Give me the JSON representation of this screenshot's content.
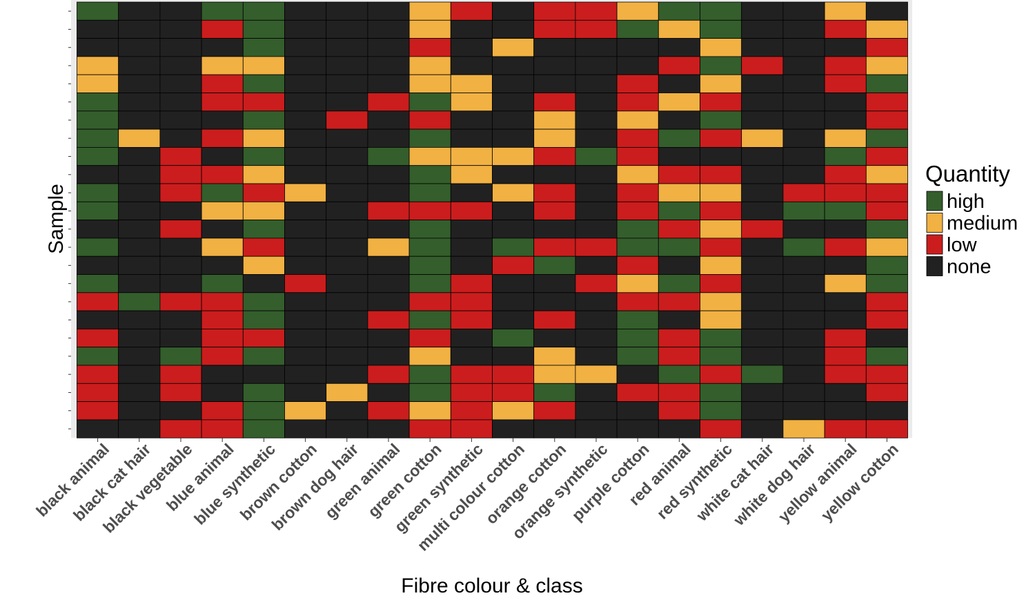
{
  "chart_data": {
    "type": "heatmap",
    "xlabel": "Fibre colour & class",
    "ylabel": "Sample",
    "categories": [
      "black animal",
      "black cat hair",
      "black vegetable",
      "blue animal",
      "blue synthetic",
      "brown cotton",
      "brown dog hair",
      "green animal",
      "green cotton",
      "green synthetic",
      "multi colour cotton",
      "orange cotton",
      "orange synthetic",
      "purple cotton",
      "red animal",
      "red synthetic",
      "white cat hair",
      "white dog hair",
      "yellow animal",
      "yellow cotton"
    ],
    "legend": {
      "title": "Quantity",
      "position": "right",
      "items": [
        {
          "key": "H",
          "label": "high",
          "color": "#345e2c"
        },
        {
          "key": "M",
          "label": "medium",
          "color": "#f1b143"
        },
        {
          "key": "L",
          "label": "low",
          "color": "#cb1d1d"
        },
        {
          "key": "N",
          "label": "none",
          "color": "#212121"
        }
      ]
    },
    "row_count": 24,
    "rows": [
      "HNNHHNNNMLNLLMHHNNMN",
      "NNNLHNNNMNNLLHMHNNLM",
      "NNNNHNNNLNMNNNNMNNNL",
      "MNNMMNNNMNNNNNLHLNLM",
      "MNNLHNNNMMNNNLNMNNLH",
      "HNNLLNNLHMNLNLMLNNNL",
      "HNNNHNLNLNNMNMNHNNNL",
      "HMNLMNNNHNNMNLHLMNMH",
      "HNLNHNNHMMMLHLNNNNHL",
      "NNLLMNNNHMNNNMLLNNLM",
      "HNLHLMNNHNMLNLMMNLLL",
      "HNNMMNNLLLNLNLHLNHHL",
      "NNLNHNNNHNNNNHLMLNNH",
      "HNNMLNNMHNHLLHHLNHLM",
      "NNNNMNNNHNLHNLNMNNNH",
      "HNNHNLNNHLNNLMHLNNMH",
      "LHLLHNNNLLNNNLLMNNNL",
      "NNNLHNNLHLNLNHNMNNNL",
      "LNNLLNNNLNHNNHLHNNLN",
      "HNHLHNNNMNNMNHLHNNLH",
      "LNLNNNNLHLLMMNHLHNLL",
      "LNLNHNMNHLLHNLLHNNNL",
      "LNNLHMNLMLMLNNLHNNNN",
      "NNLLHNNNLLNNNNNLNMLL"
    ]
  }
}
